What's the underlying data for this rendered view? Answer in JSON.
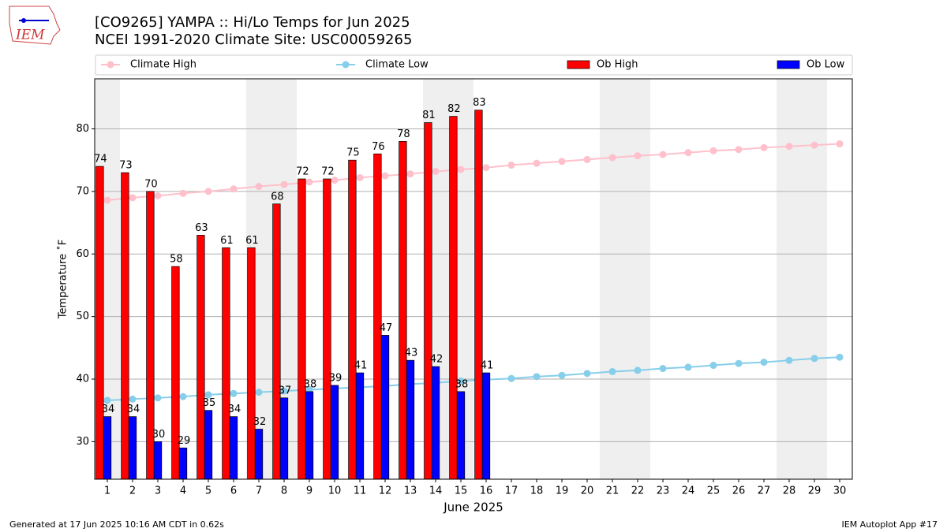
{
  "chart_data": {
    "type": "bar_line",
    "logo_text": "IEM",
    "title": "[CO9265] YAMPA :: Hi/Lo Temps for Jun 2025",
    "subtitle": "NCEI 1991-2020 Climate Site: USC00059265",
    "ylabel": "Temperature ˚F",
    "xlabel": "June 2025",
    "footer_left": "Generated at 17 Jun 2025 10:16 AM CDT in 0.62s",
    "footer_right": "IEM Autoplot App #17",
    "x": [
      1,
      2,
      3,
      4,
      5,
      6,
      7,
      8,
      9,
      10,
      11,
      12,
      13,
      14,
      15,
      16,
      17,
      18,
      19,
      20,
      21,
      22,
      23,
      24,
      25,
      26,
      27,
      28,
      29,
      30
    ],
    "xlim": [
      0.5,
      30.5
    ],
    "xticks": [
      1,
      2,
      3,
      4,
      5,
      6,
      7,
      8,
      9,
      10,
      11,
      12,
      13,
      14,
      15,
      16,
      17,
      18,
      19,
      20,
      21,
      22,
      23,
      24,
      25,
      26,
      27,
      28,
      29,
      30
    ],
    "ylim": [
      24,
      88
    ],
    "yticks": [
      30,
      40,
      50,
      60,
      70,
      80
    ],
    "grid": true,
    "shaded_days": [
      1,
      7,
      8,
      14,
      15,
      21,
      22,
      28,
      29
    ],
    "shade_color": "#efefef",
    "legend": "top",
    "series": [
      {
        "name": "Climate High",
        "kind": "line",
        "color": "#ffc0cb",
        "values": [
          68.6,
          69.0,
          69.3,
          69.7,
          70.0,
          70.4,
          70.8,
          71.1,
          71.5,
          71.8,
          72.2,
          72.5,
          72.8,
          73.2,
          73.5,
          73.8,
          74.2,
          74.5,
          74.8,
          75.1,
          75.4,
          75.7,
          75.9,
          76.2,
          76.5,
          76.7,
          77.0,
          77.2,
          77.4,
          77.6
        ]
      },
      {
        "name": "Climate Low",
        "kind": "line",
        "color": "#87ceeb",
        "values": [
          36.6,
          36.8,
          37.0,
          37.2,
          37.5,
          37.7,
          37.9,
          38.1,
          38.3,
          38.5,
          38.7,
          38.9,
          39.2,
          39.4,
          39.7,
          39.9,
          40.1,
          40.4,
          40.6,
          40.9,
          41.2,
          41.4,
          41.7,
          41.9,
          42.2,
          42.5,
          42.7,
          43.0,
          43.3,
          43.5
        ]
      },
      {
        "name": "Ob High",
        "kind": "bar",
        "color": "#ff0000",
        "values": [
          74,
          73,
          70,
          58,
          63,
          61,
          61,
          68,
          72,
          72,
          75,
          76,
          78,
          81,
          82,
          83,
          null,
          null,
          null,
          null,
          null,
          null,
          null,
          null,
          null,
          null,
          null,
          null,
          null,
          null
        ]
      },
      {
        "name": "Ob Low",
        "kind": "bar",
        "color": "#0000ff",
        "values": [
          34,
          34,
          30,
          29,
          35,
          34,
          32,
          37,
          38,
          39,
          41,
          47,
          43,
          42,
          38,
          41,
          null,
          null,
          null,
          null,
          null,
          null,
          null,
          null,
          null,
          null,
          null,
          null,
          null,
          null
        ]
      }
    ]
  }
}
